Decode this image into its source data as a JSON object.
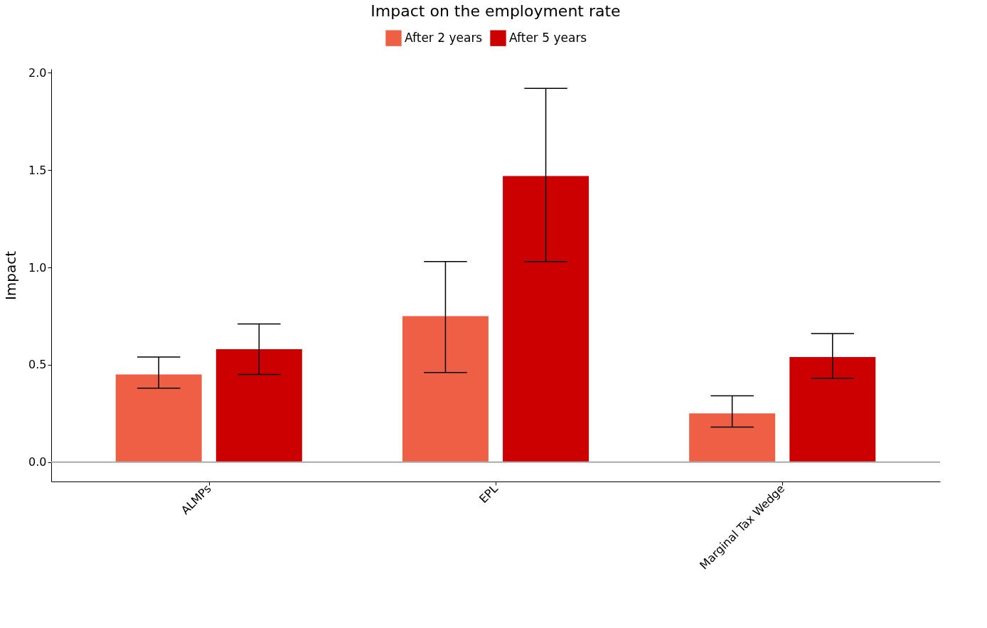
{
  "chart_data": {
    "type": "bar",
    "title": "Impact on the employment rate",
    "ylabel": "Impact",
    "categories": [
      "ALMPs",
      "EPL",
      "Marginal Tax Wedge"
    ],
    "series": [
      {
        "name": "After 2 years",
        "color": "#ef5f45",
        "values": [
          0.45,
          0.75,
          0.25
        ],
        "errors": [
          [
            0.38,
            0.54
          ],
          [
            0.46,
            1.03
          ],
          [
            0.18,
            0.34
          ]
        ]
      },
      {
        "name": "After 5 years",
        "color": "#cc0000",
        "values": [
          0.58,
          1.47,
          0.54
        ],
        "errors": [
          [
            0.45,
            0.71
          ],
          [
            1.03,
            1.92
          ],
          [
            0.43,
            0.66
          ]
        ]
      }
    ],
    "ylim": [
      -0.1,
      2.02
    ],
    "yticks": [
      {
        "value": 0,
        "label": "0.0"
      },
      {
        "value": 0.5,
        "label": "0.5"
      },
      {
        "value": 1,
        "label": "1.0"
      },
      {
        "value": 1.5,
        "label": "1.5"
      },
      {
        "value": 2,
        "label": "2.0"
      }
    ],
    "ref_lines": [
      {
        "axis": "y",
        "value": 0,
        "color": "#aaaaaa"
      }
    ],
    "grid": false,
    "legend": "top"
  }
}
